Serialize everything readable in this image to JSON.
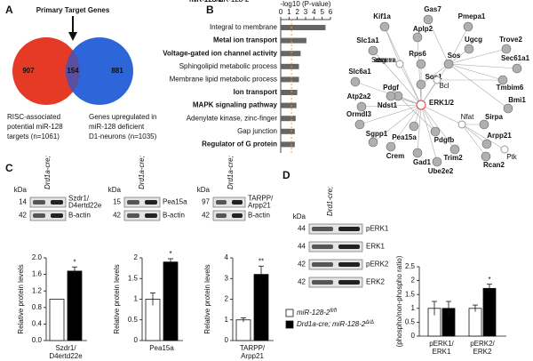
{
  "panels": {
    "a": "A",
    "b": "B",
    "c": "C",
    "d": "D"
  },
  "venn": {
    "title": "Primary Target Genes",
    "left": 907,
    "overlap": 154,
    "right": 881,
    "left_caption": [
      "RISC-associated",
      "potential miR-128",
      "targets (n=1061)"
    ],
    "right_caption": [
      "Genes upregulated in",
      "miR-128 deficient",
      "D1-neurons (n=1035)"
    ],
    "colors": [
      "#e53a26",
      "#2d66d8",
      "#5b4e9e"
    ]
  },
  "chart_data": [
    {
      "type": "bar",
      "orientation": "horizontal",
      "xlabel": "-log10 (P-value)",
      "categories": [
        "Integral to membrane",
        "Metal ion transport",
        "Voltage-gated ion channel activity",
        "Sphingolipid metabolic process",
        "Membrane lipid metabolic process",
        "Ion transport",
        "MAPK signaling pathway",
        "Adenylate kinase, zinc-finger",
        "Gap junction",
        "Regulator of G protein"
      ],
      "bold": [
        false,
        true,
        true,
        false,
        false,
        true,
        true,
        false,
        false,
        true
      ],
      "values": [
        5.4,
        3.1,
        2.4,
        2.2,
        2.2,
        2.0,
        1.9,
        1.8,
        1.7,
        1.7
      ],
      "color": "#666666",
      "xlim": [
        0,
        6
      ],
      "xticks": [
        0,
        1,
        2,
        3,
        4,
        5,
        6
      ],
      "threshold": 1.3,
      "threshold_color": "#f0a040"
    },
    {
      "type": "bar",
      "ylabel": "Relative protein levels",
      "group_label": [
        "Szdr1/",
        "D4ertd22e"
      ],
      "values": [
        1.0,
        1.68
      ],
      "errors": [
        null,
        0.1
      ],
      "colors": [
        "#ffffff",
        "#000000"
      ],
      "annotations": [
        null,
        "*"
      ],
      "ylim": [
        0,
        2
      ],
      "yticks": [
        {
          "value": 0,
          "label": "0.0"
        },
        {
          "value": 0.4,
          "label": "0.4"
        },
        {
          "value": 0.8,
          "label": "0.8"
        },
        {
          "value": 1.2,
          "label": "1.2"
        },
        {
          "value": 1.6,
          "label": "1.6"
        },
        {
          "value": 2,
          "label": "2.0"
        }
      ]
    },
    {
      "type": "bar",
      "ylabel": "Relative protein levels",
      "group_label": [
        "Pea15a"
      ],
      "values": [
        1.0,
        1.9
      ],
      "errors": [
        0.15,
        0.08
      ],
      "colors": [
        "#ffffff",
        "#000000"
      ],
      "annotations": [
        null,
        "*"
      ],
      "ylim": [
        0,
        2
      ],
      "yticks": [
        0,
        0.5,
        1,
        1.5,
        2
      ]
    },
    {
      "type": "bar",
      "ylabel": "Relative protein levels",
      "group_label": [
        "TARPP/",
        "Arpp21"
      ],
      "values": [
        1.0,
        3.2
      ],
      "errors": [
        0.1,
        0.4
      ],
      "colors": [
        "#ffffff",
        "#000000"
      ],
      "annotations": [
        null,
        "**"
      ],
      "ylim": [
        0,
        4
      ],
      "yticks": [
        0,
        1,
        2,
        3,
        4
      ]
    },
    {
      "type": "grouped-bar",
      "ylabel": "(phospho/non-phospho ratio)",
      "categories": [
        [
          "pERK1/",
          "ERK1"
        ],
        [
          "pERK2/",
          "ERK2"
        ]
      ],
      "series": [
        {
          "name": "miR-128-2",
          "name_sup": "fl/fl",
          "color": "#ffffff",
          "values": [
            1.0,
            1.0
          ],
          "errors": [
            0.25,
            0.12
          ],
          "annotations": [
            null,
            null
          ]
        },
        {
          "name": "Drd1a-cre; miR-128-2",
          "name_sup": "Δ/Δ",
          "color": "#000000",
          "values": [
            1.0,
            1.72
          ],
          "errors": [
            0.25,
            0.15
          ],
          "annotations": [
            null,
            "*"
          ]
        }
      ],
      "ylim": [
        0,
        2.5
      ],
      "yticks": [
        0,
        0.5,
        1,
        1.5,
        2,
        2.5
      ]
    }
  ],
  "network": {
    "nodes": [
      {
        "label": "Kif1a",
        "kind": "gene"
      },
      {
        "label": "Gas7",
        "kind": "gene"
      },
      {
        "label": "Pmepa1",
        "kind": "gene"
      },
      {
        "label": "Aplp2",
        "kind": "gene"
      },
      {
        "label": "Slc1a1",
        "kind": "gene"
      },
      {
        "label": "Secretase gamma",
        "kind": "group"
      },
      {
        "label": "Ugcg",
        "kind": "gene"
      },
      {
        "label": "Trove2",
        "kind": "gene"
      },
      {
        "label": "Rps6",
        "kind": "gene"
      },
      {
        "label": "Sos",
        "kind": "gene"
      },
      {
        "label": "Sec61a1",
        "kind": "gene"
      },
      {
        "label": "Slc6a1",
        "kind": "gene"
      },
      {
        "label": "Sos1",
        "kind": "gene"
      },
      {
        "label": "Pdgf",
        "kind": "gene"
      },
      {
        "label": "Bcl",
        "kind": "group"
      },
      {
        "label": "Tmbim6",
        "kind": "gene"
      },
      {
        "label": "Atp2a2",
        "kind": "gene"
      },
      {
        "label": "Ndst1",
        "kind": "gene"
      },
      {
        "label": "ERK1/2",
        "kind": "hub"
      },
      {
        "label": "Bmi1",
        "kind": "gene"
      },
      {
        "label": "Ormdl3",
        "kind": "gene"
      },
      {
        "label": "Nfat",
        "kind": "group"
      },
      {
        "label": "Sirpa",
        "kind": "gene"
      },
      {
        "label": "Sgpp1",
        "kind": "gene"
      },
      {
        "label": "Arpp21",
        "kind": "gene"
      },
      {
        "label": "Pea15a",
        "kind": "gene"
      },
      {
        "label": "Pdgfb",
        "kind": "gene"
      },
      {
        "label": "Crem",
        "kind": "gene"
      },
      {
        "label": "Trim2",
        "kind": "gene"
      },
      {
        "label": "Ptk",
        "kind": "group"
      },
      {
        "label": "Gad1",
        "kind": "gene"
      },
      {
        "label": "Rcan2",
        "kind": "gene"
      },
      {
        "label": "Ube2e2",
        "kind": "gene"
      }
    ]
  },
  "blots": [
    {
      "kda_title": "kDa",
      "headers": [
        {
          "lines": [
            "miR-128-2"
          ],
          "sup": "fl/fl"
        },
        {
          "lines": [
            "Drd1a-cre;",
            "miR-128-2"
          ],
          "sup": "fl/fl"
        }
      ],
      "rows": [
        {
          "kda": 14,
          "label": [
            "Szdr1/",
            "D4ertd22e"
          ]
        },
        {
          "kda": 42,
          "label": [
            "B-actin"
          ]
        }
      ]
    },
    {
      "kda_title": "kDa",
      "headers": [
        {
          "lines": [
            "miR-128-2"
          ],
          "sup": "fl/fl"
        },
        {
          "lines": [
            "Drd1a-cre;",
            "miR-128-2"
          ],
          "sup": "fl/fl"
        }
      ],
      "rows": [
        {
          "kda": 15,
          "label": [
            "Pea15a"
          ]
        },
        {
          "kda": 42,
          "label": [
            "B-actin"
          ]
        }
      ]
    },
    {
      "kda_title": "kDa",
      "headers": [
        {
          "lines": [
            "miR-128-2"
          ],
          "sup": "fl/fl"
        },
        {
          "lines": [
            "Drd1a-cre;",
            "miR-128-2"
          ],
          "sup": "fl/fl"
        }
      ],
      "rows": [
        {
          "kda": 97,
          "label": [
            "TARPP/",
            "Arpp21"
          ]
        },
        {
          "kda": 42,
          "label": [
            "B-actin"
          ]
        }
      ]
    },
    {
      "kda_title": "kDa",
      "headers": [
        {
          "lines": [
            "miR-128-2"
          ],
          "sup": "Δ/Δ"
        },
        {
          "lines": [
            "Drd1-cre;",
            "miR-128-2"
          ],
          "sup": "Δ/Δ"
        }
      ],
      "rows": [
        {
          "kda": 44,
          "label": [
            "pERK1"
          ]
        },
        {
          "kda": 44,
          "label": [
            "ERK1"
          ]
        },
        {
          "kda": 42,
          "label": [
            "pERK2"
          ]
        },
        {
          "kda": 42,
          "label": [
            "ERK2"
          ]
        }
      ]
    }
  ]
}
